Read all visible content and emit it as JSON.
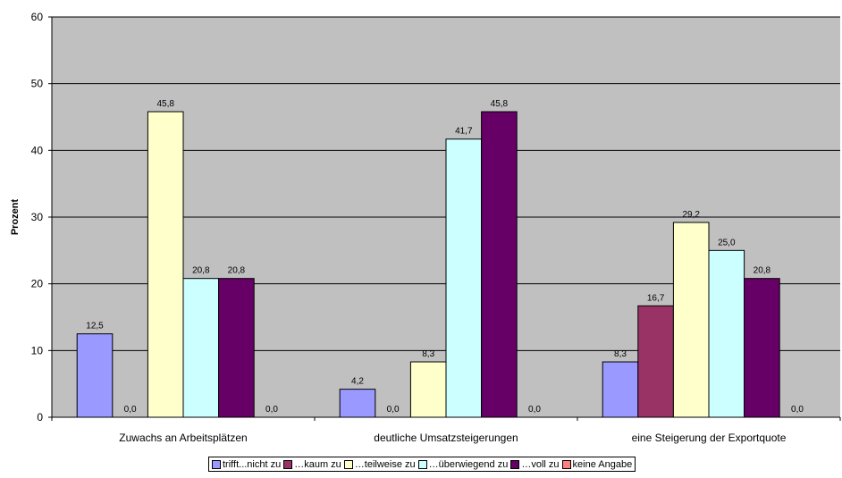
{
  "chart_data": {
    "type": "bar",
    "title": "",
    "xlabel": "",
    "ylabel": "Prozent",
    "ylim": [
      0,
      60
    ],
    "yticks": [
      "0",
      "10",
      "20",
      "30",
      "40",
      "50",
      "60"
    ],
    "grid": true,
    "legend_position": "bottom",
    "categories": [
      "Zuwachs an Arbeitsplätzen",
      "deutliche Umsatzsteigerungen",
      "eine Steigerung der Exportquote"
    ],
    "series": [
      {
        "name": "trifft...nicht zu",
        "color": "#9999FF",
        "values": [
          12.5,
          4.2,
          8.3
        ],
        "labels": [
          "12,5",
          "4,2",
          "8,3"
        ]
      },
      {
        "name": "…kaum zu",
        "color": "#993366",
        "values": [
          0.0,
          0.0,
          16.7
        ],
        "labels": [
          "0,0",
          "0,0",
          "16,7"
        ]
      },
      {
        "name": "…teilweise zu",
        "color": "#FFFFCC",
        "values": [
          45.8,
          8.3,
          29.2
        ],
        "labels": [
          "45,8",
          "8,3",
          "29,2"
        ]
      },
      {
        "name": "…überwiegend zu",
        "color": "#CCFFFF",
        "values": [
          20.8,
          41.7,
          25.0
        ],
        "labels": [
          "20,8",
          "41,7",
          "25,0"
        ]
      },
      {
        "name": "…voll zu",
        "color": "#660066",
        "values": [
          20.8,
          45.8,
          20.8
        ],
        "labels": [
          "20,8",
          "45,8",
          "20,8"
        ]
      },
      {
        "name": "keine Angabe",
        "color": "#FF8080",
        "values": [
          0.0,
          0.0,
          0.0
        ],
        "labels": [
          "0,0",
          "0,0",
          "0,0"
        ]
      }
    ],
    "plot_background": "#C0C0C0"
  }
}
